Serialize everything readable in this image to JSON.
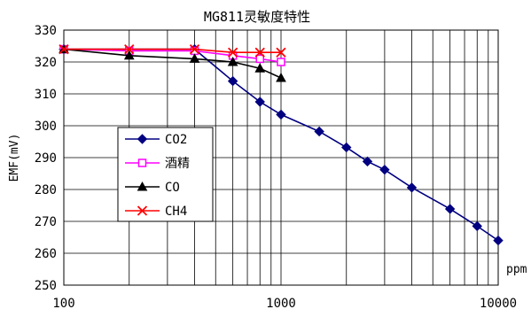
{
  "chart_data": {
    "type": "line",
    "title": "MG811灵敏度特性",
    "xlabel": "",
    "ylabel": "EMF(mV)",
    "x_unit_label": "ppm",
    "xscale": "log",
    "xlim": [
      100,
      10000
    ],
    "ylim": [
      250,
      330
    ],
    "x_ticks": [
      "100",
      "1000",
      "10000"
    ],
    "y_ticks": [
      "330",
      "320",
      "310",
      "300",
      "290",
      "280",
      "270",
      "260",
      "250"
    ],
    "grid": true,
    "legend_position": "left-center",
    "series": [
      {
        "name": "CO2",
        "color": "#000080",
        "marker": "diamond",
        "x": [
          100,
          400,
          600,
          800,
          1000,
          1500,
          2000,
          2500,
          3000,
          4000,
          6000,
          8000,
          10000
        ],
        "y": [
          324,
          324,
          314,
          307.5,
          303.5,
          298.2,
          293.2,
          288.8,
          286.2,
          280.6,
          273.9,
          268.5,
          264
        ]
      },
      {
        "name": "酒精",
        "color": "#ff00ff",
        "marker": "square",
        "x": [
          100,
          200,
          400,
          600,
          800,
          1000
        ],
        "y": [
          324,
          323.5,
          323.5,
          322,
          321,
          320
        ]
      },
      {
        "name": "CO",
        "color": "#000000",
        "marker": "triangle",
        "x": [
          100,
          200,
          400,
          600,
          800,
          1000
        ],
        "y": [
          324,
          322,
          321,
          320,
          318,
          315
        ]
      },
      {
        "name": "CH4",
        "color": "#ff0000",
        "marker": "x",
        "x": [
          100,
          200,
          400,
          600,
          800,
          1000
        ],
        "y": [
          324,
          324,
          324,
          323,
          323,
          323
        ]
      }
    ]
  }
}
